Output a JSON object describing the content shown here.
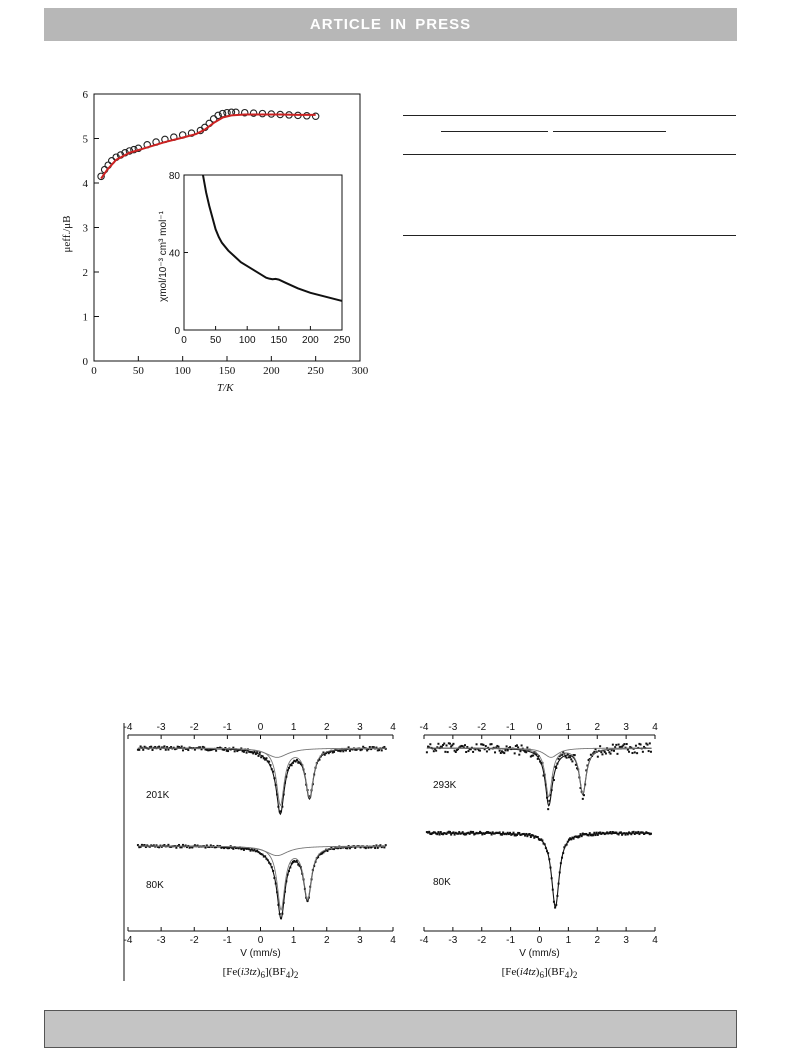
{
  "header": {
    "banner": "ARTICLE IN PRESS"
  },
  "chart_data": [
    {
      "type": "scatter",
      "ylabel": "μeff./μB",
      "xlabel": "T/K",
      "xlim": [
        0,
        300
      ],
      "ylim": [
        0,
        6
      ],
      "xticks": [
        0,
        50,
        100,
        150,
        200,
        250,
        300
      ],
      "yticks": [
        0,
        1,
        2,
        3,
        4,
        5,
        6
      ],
      "series": [
        {
          "kind": "markers",
          "color": "#222222",
          "x": [
            8,
            12,
            16,
            20,
            25,
            30,
            35,
            40,
            45,
            50,
            60,
            70,
            80,
            90,
            100,
            110,
            120,
            125,
            130,
            135,
            140,
            145,
            150,
            155,
            160,
            170,
            180,
            190,
            200,
            210,
            220,
            230,
            240,
            250
          ],
          "y": [
            4.15,
            4.3,
            4.4,
            4.5,
            4.58,
            4.63,
            4.68,
            4.72,
            4.75,
            4.78,
            4.86,
            4.92,
            4.98,
            5.03,
            5.08,
            5.12,
            5.18,
            5.25,
            5.34,
            5.44,
            5.52,
            5.56,
            5.58,
            5.59,
            5.59,
            5.58,
            5.57,
            5.56,
            5.55,
            5.54,
            5.53,
            5.52,
            5.51,
            5.5
          ]
        },
        {
          "kind": "line",
          "color": "#cc2222",
          "x": [
            8,
            15,
            25,
            40,
            60,
            80,
            100,
            115,
            125,
            135,
            145,
            155,
            170,
            190,
            210,
            230,
            250
          ],
          "y": [
            4.1,
            4.3,
            4.52,
            4.68,
            4.8,
            4.92,
            5.02,
            5.1,
            5.2,
            5.35,
            5.47,
            5.52,
            5.54,
            5.54,
            5.54,
            5.53,
            5.53
          ]
        }
      ]
    },
    {
      "type": "line",
      "ylabel": "χmol/10⁻³ cm³ mol⁻¹",
      "xlabel": "",
      "xlim": [
        0,
        250
      ],
      "ylim": [
        0,
        80
      ],
      "xticks": [
        0,
        50,
        100,
        150,
        200,
        250
      ],
      "yticks": [
        0,
        40,
        80
      ],
      "series": [
        {
          "kind": "line",
          "color": "#111111",
          "x": [
            30,
            35,
            40,
            45,
            50,
            55,
            60,
            70,
            80,
            90,
            100,
            110,
            120,
            130,
            135,
            140,
            145,
            150,
            160,
            170,
            180,
            200,
            220,
            250
          ],
          "y": [
            80,
            71,
            64,
            58,
            52,
            48,
            45,
            41,
            38,
            35,
            33,
            31,
            29,
            27,
            26.5,
            26.2,
            26.4,
            26,
            24.5,
            23,
            21.5,
            19.2,
            17.5,
            15
          ]
        }
      ]
    },
    {
      "type": "line",
      "xlabel": "V (mm/s)",
      "xlim": [
        -4,
        4
      ],
      "xticks": [
        -4,
        -3,
        -2,
        -1,
        0,
        1,
        2,
        3,
        4
      ],
      "labels": [
        "201K",
        "80K"
      ],
      "compound_formula": "[Fe(i3tz)6](BF4)2",
      "spectra": [
        {
          "temp": "201K",
          "baseline": 0,
          "dips": [
            [
              0.6,
              0.72,
              0.14
            ],
            [
              1.48,
              0.62,
              0.14
            ],
            [
              0.5,
              0.12,
              0.4
            ]
          ]
        },
        {
          "temp": "80K",
          "baseline": 0,
          "dips": [
            [
              0.62,
              0.78,
              0.14
            ],
            [
              1.42,
              0.65,
              0.14
            ],
            [
              0.5,
              0.12,
              0.4
            ]
          ]
        }
      ]
    },
    {
      "type": "line",
      "xlabel": "V (mm/s)",
      "xlim": [
        -4,
        4
      ],
      "xticks": [
        -4,
        -3,
        -2,
        -1,
        0,
        1,
        2,
        3,
        4
      ],
      "labels": [
        "293K",
        "80K"
      ],
      "compound_formula": "[Fe(i4tz)6](BF4)2",
      "spectra": [
        {
          "temp": "293K",
          "baseline": 0,
          "dips": [
            [
              0.32,
              0.62,
              0.14
            ],
            [
              1.5,
              0.58,
              0.14
            ],
            [
              0.4,
              0.12,
              0.3
            ]
          ]
        },
        {
          "temp": "80K",
          "baseline": 0,
          "dips": [
            [
              0.55,
              0.95,
              0.16
            ]
          ]
        }
      ]
    }
  ]
}
